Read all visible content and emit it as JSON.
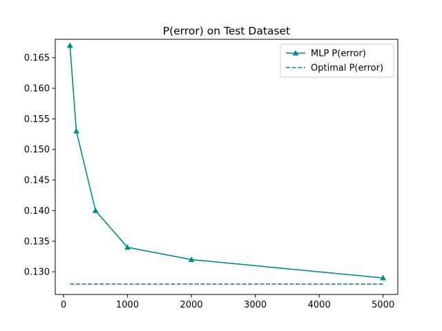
{
  "chart_data": {
    "type": "line",
    "title": "P(error) on Test Dataset",
    "xlabel": "",
    "ylabel": "",
    "xlim": [
      -130,
      5230
    ],
    "ylim": [
      0.1263,
      0.168
    ],
    "xticks": [
      0,
      1000,
      2000,
      3000,
      4000,
      5000
    ],
    "xtick_labels": [
      "0",
      "1000",
      "2000",
      "3000",
      "4000",
      "5000"
    ],
    "yticks": [
      0.13,
      0.135,
      0.14,
      0.145,
      0.15,
      0.155,
      0.16,
      0.165
    ],
    "ytick_labels": [
      "0.130",
      "0.135",
      "0.140",
      "0.145",
      "0.150",
      "0.155",
      "0.160",
      "0.165"
    ],
    "grid": false,
    "legend_position": "top-right",
    "series": [
      {
        "name": "MLP P(error)",
        "style": "solid",
        "marker": "triangle",
        "color": "#008b8b",
        "x": [
          100,
          200,
          500,
          1000,
          2000,
          5000
        ],
        "y": [
          0.167,
          0.153,
          0.14,
          0.134,
          0.132,
          0.129
        ]
      },
      {
        "name": "Optimal P(error)",
        "style": "dashed",
        "marker": "none",
        "color": "#1f77b4",
        "x": [
          100,
          5000
        ],
        "y": [
          0.128,
          0.128
        ]
      }
    ]
  }
}
